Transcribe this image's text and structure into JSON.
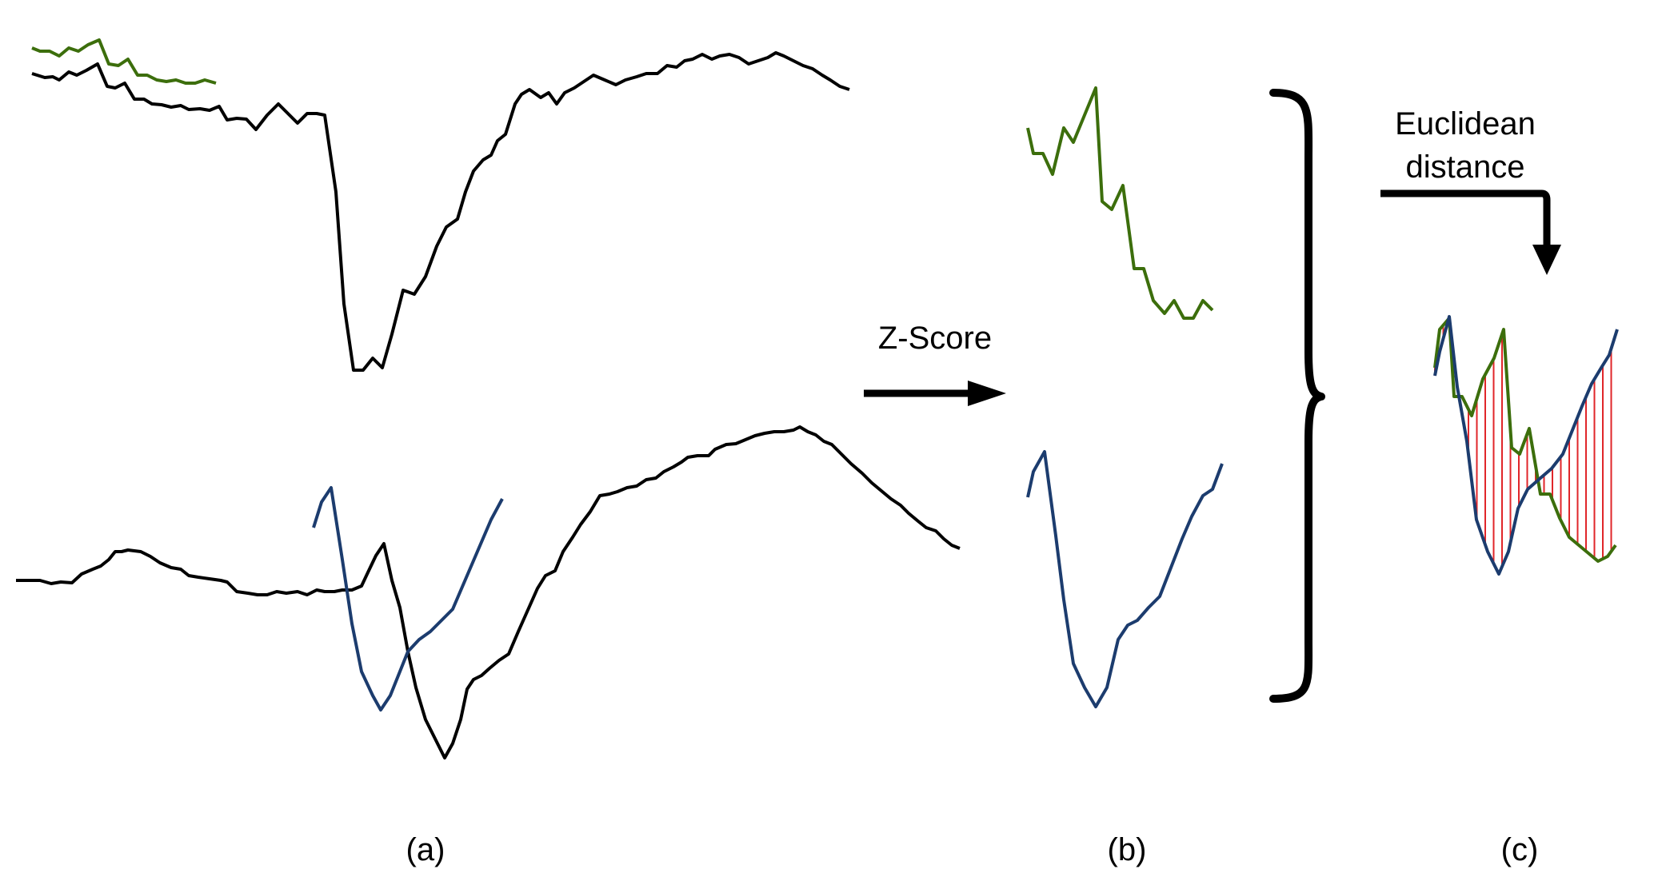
{
  "labels": {
    "panel_a": "(a)",
    "panel_b": "(b)",
    "panel_c": "(c)",
    "zscore": "Z-Score",
    "euclid_line1": "Euclidean",
    "euclid_line2": "distance"
  },
  "colors": {
    "black_series": "#000000",
    "green_series": "#3c6e0c",
    "blue_series": "#1c3c6e",
    "distance_lines": "#e0262a"
  }
}
